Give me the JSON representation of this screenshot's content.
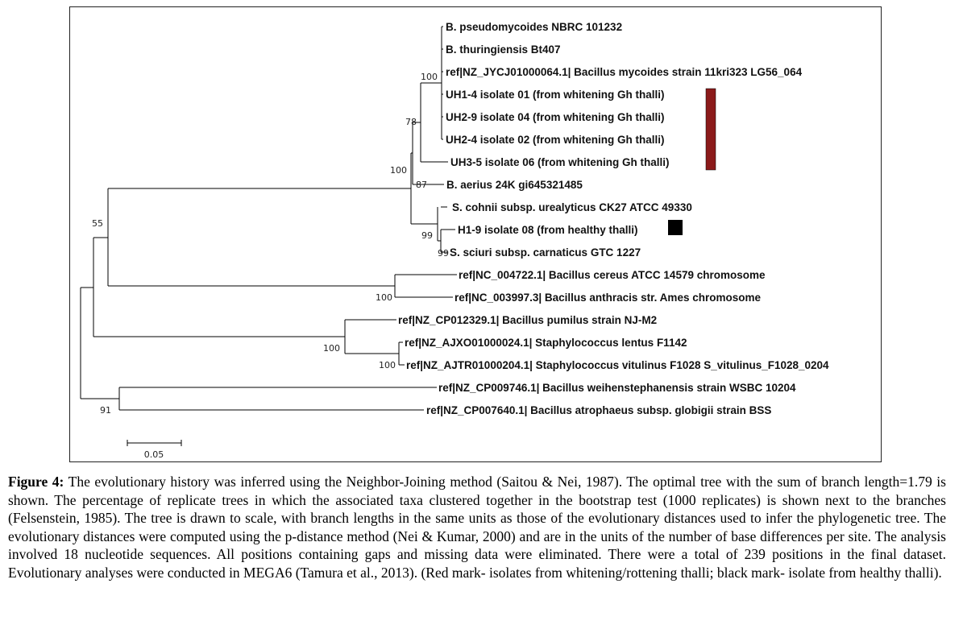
{
  "tree": {
    "taxa": [
      "B. pseudomycoides NBRC 101232",
      "B. thuringiensis Bt407",
      "ref|NZ_JYCJ01000064.1| Bacillus mycoides strain 11kri323 LG56_064",
      "UH1-4 isolate 01 (from whitening Gh thalli)",
      "UH2-9 isolate 04 (from whitening Gh thalli)",
      "UH2-4 isolate 02 (from whitening Gh thalli)",
      "UH3-5 isolate 06 (from whitening Gh thalli)",
      "B. aerius 24K gi645321485",
      "S. cohnii subsp. urealyticus CK27 ATCC 49330",
      "H1-9 isolate 08 (from healthy thalli)",
      "S. sciuri subsp. carnaticus GTC 1227",
      "ref|NC_004722.1| Bacillus cereus ATCC 14579 chromosome",
      "ref|NC_003997.3| Bacillus anthracis str. Ames chromosome",
      "ref|NZ_CP012329.1| Bacillus pumilus strain NJ-M2",
      "ref|NZ_AJXO01000024.1| Staphylococcus lentus F1142",
      "ref|NZ_AJTR01000204.1| Staphylococcus vitulinus F1028 S_vitulinus_F1028_0204",
      "ref|NZ_CP009746.1| Bacillus weihenstephanensis strain WSBC 10204",
      "ref|NZ_CP007640.1| Bacillus atrophaeus subsp. globigii strain BSS"
    ],
    "bootstrap": [
      "100",
      "78",
      "100",
      "87",
      "55",
      "99",
      "99",
      "100",
      "100",
      "100",
      "91"
    ],
    "scale_bar_label": "0.05",
    "marks": {
      "whitening_color": "#8b1a1a",
      "healthy_color": "#000000"
    }
  },
  "caption": {
    "label": "Figure 4:",
    "text": " The evolutionary history was inferred using the Neighbor-Joining method (Saitou & Nei, 1987). The optimal tree with the sum of branch length=1.79 is shown. The percentage of replicate trees in which the associated taxa clustered together in the bootstrap test (1000 replicates) is shown next to the branches (Felsenstein, 1985). The tree is drawn to scale, with branch lengths in the same units as those of the evolutionary distances used to infer the phylogenetic tree. The evolutionary distances were computed using the p-distance method (Nei & Kumar, 2000) and are in the units of the number of base differences per site. The analysis involved 18 nucleotide sequences. All positions containing gaps and missing data were eliminated. There were a total of 239 positions in the final dataset. Evolutionary analyses were conducted in MEGA6 (Tamura et al., 2013). (Red mark- isolates from whitening/rottening thalli; black mark- isolate from healthy thalli)."
  }
}
